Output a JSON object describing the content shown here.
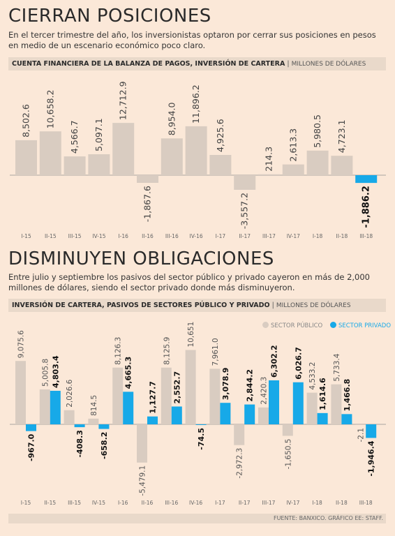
{
  "section1": {
    "title": "CIERRAN POSICIONES",
    "intro": "En el tercer trimestre del año, los inversionistas optaron por cerrar sus posiciones en pesos en medio de un escenario económico poco claro.",
    "header_bold": "Cuenta financiera de la balanza de pagos, inversión de cartera",
    "header_unit": "Millones de dólares"
  },
  "section2": {
    "title": "DISMINUYEN OBLIGACIONES",
    "intro": "Entre julio y septiembre los pasivos del sector público y privado cayeron en más de 2,000 millones de dólares, siendo el sector privado donde más disminuyeron.",
    "header_bold": "Inversión de cartera, pasivos de sectores público y privado",
    "header_unit": "Millones de dólares",
    "legend": [
      "Sector público",
      "Sector privado"
    ]
  },
  "footer": "FUENTE: BANXICO. GRÁFICO EE: STAFF.",
  "colors": {
    "background": "#fbe8d8",
    "beige": "#d9ccc1",
    "blue": "#17a9e8",
    "header_band": "#e9d9ca"
  },
  "chart_data": [
    {
      "type": "bar",
      "title": "Cuenta financiera de la balanza de pagos, inversión de cartera",
      "ylabel": "Millones de dólares",
      "categories": [
        "I-15",
        "II-15",
        "III-15",
        "IV-15",
        "I-16",
        "II-16",
        "III-16",
        "IV-16",
        "I-17",
        "II-17",
        "III-17",
        "IV-17",
        "I-18",
        "II-18",
        "III-18"
      ],
      "values": [
        8502.6,
        10658.2,
        4566.7,
        5097.1,
        12712.9,
        -1867.6,
        8954.0,
        11896.2,
        4925.6,
        -3557.2,
        214.3,
        2613.3,
        5980.5,
        4723.1,
        -1886.2
      ],
      "labels": [
        "8,502.6",
        "10,658.2",
        "4,566.7",
        "5,097.1",
        "12,712.9",
        "-1,867.6",
        "8,954.0",
        "11,896.2",
        "4,925.6",
        "-3,557.2",
        "214.3",
        "2,613.3",
        "5,980.5",
        "4,723.1",
        "-1,886.2"
      ],
      "highlight_index": 14,
      "grid": false
    },
    {
      "type": "bar",
      "title": "Inversión de cartera, pasivos de sectores público y privado",
      "ylabel": "Millones de dólares",
      "categories": [
        "I-15",
        "II-15",
        "III-15",
        "IV-15",
        "I-16",
        "II-16",
        "III-16",
        "IV-16",
        "I-17",
        "II-17",
        "III-17",
        "IV-17",
        "I-18",
        "II-18",
        "III-18"
      ],
      "legend_position": "top-right",
      "grid": false,
      "series": [
        {
          "name": "Sector público",
          "color": "#d9ccc1",
          "values": [
            9075.6,
            5005.8,
            2026.6,
            814.5,
            8126.3,
            -5479.1,
            8125.9,
            10651.4,
            7961.0,
            -2972.3,
            2420.3,
            -1650.5,
            4533.2,
            5733.4,
            -2.1
          ],
          "labels": [
            "9,075.6",
            "5,005.8",
            "2,026.6",
            "814.5",
            "8,126.3",
            "-5,479.1",
            "8,125.9",
            "10,651.4",
            "7,961.0",
            "-2,972.3",
            "2,420.3",
            "-1,650.5",
            "4,533.2",
            "5,733.4",
            "-2.1"
          ]
        },
        {
          "name": "Sector privado",
          "color": "#17a9e8",
          "values": [
            -967.0,
            4803.4,
            -408.3,
            -658.2,
            4665.3,
            1127.7,
            2552.7,
            -74.5,
            3078.9,
            2844.2,
            6302.2,
            6026.7,
            1614.6,
            1466.8,
            -1946.4
          ],
          "labels": [
            "-967.0",
            "4,803.4",
            "-408.3",
            "-658.2",
            "4,665.3",
            "1,127.7",
            "2,552.7",
            "-74.5",
            "3,078.9",
            "2,844.2",
            "6,302.2",
            "6,026.7",
            "1,614.6",
            "1,466.8",
            "-1,946.4"
          ]
        }
      ]
    }
  ]
}
